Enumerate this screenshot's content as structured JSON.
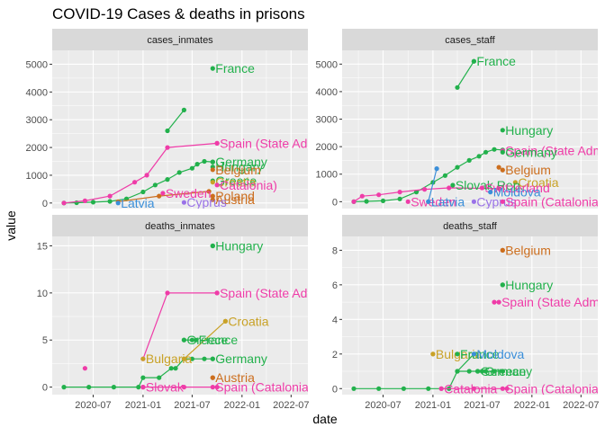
{
  "chart_data": {
    "type": "scatter",
    "title": "COVID-19 Cases & deaths in prisons",
    "xlabel": "date",
    "ylabel": "value",
    "grid": true,
    "facet_layout": "2x2",
    "colors": {
      "green": "#22b14c",
      "pink": "#ef3ca8",
      "orange": "#cc6e1e",
      "gold": "#c9a227",
      "blue": "#3b8fd9",
      "purple": "#9a72e8",
      "teal": "#27a9a0",
      "olive": "#8f9a1f",
      "lime": "#56b82a"
    },
    "x_ticks": [
      "2020-07",
      "2021-01",
      "2021-07",
      "2022-01",
      "2022-07"
    ],
    "panels": [
      {
        "strip": "cases_inmates",
        "ylim": [
          -200,
          5500
        ],
        "y_ticks": [
          0,
          1000,
          2000,
          3000,
          4000,
          5000
        ],
        "series": [
          {
            "color": "green",
            "points": [
              [
                "2020-03-15",
                0
              ],
              [
                "2020-05-01",
                10
              ],
              [
                "2020-07-01",
                30
              ],
              [
                "2020-09-01",
                60
              ],
              [
                "2020-11-01",
                150
              ],
              [
                "2021-01-01",
                400
              ],
              [
                "2021-02-15",
                650
              ],
              [
                "2021-04-01",
                850
              ],
              [
                "2021-05-15",
                1100
              ],
              [
                "2021-07-01",
                1250
              ],
              [
                "2021-07-20",
                1400
              ],
              [
                "2021-08-15",
                1500
              ],
              [
                "2021-09-15",
                1480
              ]
            ]
          },
          {
            "color": "green",
            "points": [
              [
                "2021-04-01",
                2600
              ],
              [
                "2021-06-01",
                3350
              ]
            ]
          },
          {
            "color": "pink",
            "points": [
              [
                "2020-03-15",
                0
              ],
              [
                "2020-06-01",
                80
              ],
              [
                "2020-09-01",
                250
              ],
              [
                "2020-12-01",
                750
              ],
              [
                "2021-01-15",
                1000
              ],
              [
                "2021-04-01",
                2000
              ],
              [
                "2021-10-01",
                2150
              ]
            ]
          },
          {
            "color": "orange",
            "points": [
              [
                "2020-10-01",
                50
              ],
              [
                "2021-03-01",
                250
              ],
              [
                "2021-09-01",
                420
              ]
            ]
          }
        ],
        "labels": [
          {
            "text": "France",
            "x": "2021-09-15",
            "y": 4850,
            "color": "green"
          },
          {
            "text": "Spain (State Adm",
            "x": "2021-10-01",
            "y": 2150,
            "color": "pink"
          },
          {
            "text": "Germany",
            "x": "2021-09-15",
            "y": 1480,
            "color": "green"
          },
          {
            "text": "Hungary",
            "x": "2021-09-15",
            "y": 1300,
            "color": "green"
          },
          {
            "text": "Belgium",
            "x": "2021-09-15",
            "y": 1200,
            "color": "orange"
          },
          {
            "text": "Greece",
            "x": "2021-09-15",
            "y": 800,
            "color": "green"
          },
          {
            "text": "Croatia",
            "x": "2021-09-15",
            "y": 750,
            "color": "gold"
          },
          {
            "text": "Catalonia)",
            "x": "2021-10-01",
            "y": 650,
            "color": "pink"
          },
          {
            "text": "Poland",
            "x": "2021-09-15",
            "y": 250,
            "color": "orange"
          },
          {
            "text": "Sweden",
            "x": "2021-03-15",
            "y": 350,
            "color": "pink"
          },
          {
            "text": "Austria",
            "x": "2021-09-15",
            "y": 120,
            "color": "orange"
          },
          {
            "text": "Cyprus",
            "x": "2021-06-01",
            "y": 20,
            "color": "purple"
          },
          {
            "text": "Latvia",
            "x": "2020-10-01",
            "y": 0,
            "color": "blue"
          }
        ]
      },
      {
        "strip": "cases_staff",
        "ylim": [
          -250,
          5500
        ],
        "y_ticks": [
          0,
          1000,
          2000,
          3000,
          4000,
          5000
        ],
        "series": [
          {
            "color": "green",
            "points": [
              [
                "2020-03-15",
                0
              ],
              [
                "2020-05-01",
                10
              ],
              [
                "2020-07-01",
                30
              ],
              [
                "2020-09-01",
                100
              ],
              [
                "2020-11-01",
                350
              ],
              [
                "2021-01-01",
                700
              ],
              [
                "2021-02-15",
                950
              ],
              [
                "2021-04-01",
                1250
              ],
              [
                "2021-05-15",
                1500
              ],
              [
                "2021-06-20",
                1650
              ],
              [
                "2021-07-15",
                1800
              ],
              [
                "2021-08-15",
                1900
              ],
              [
                "2021-09-15",
                1880
              ]
            ]
          },
          {
            "color": "green",
            "points": [
              [
                "2021-04-01",
                4150
              ],
              [
                "2021-06-01",
                5100
              ]
            ]
          },
          {
            "color": "pink",
            "points": [
              [
                "2020-03-15",
                0
              ],
              [
                "2020-04-15",
                200
              ],
              [
                "2020-06-15",
                250
              ],
              [
                "2020-09-01",
                350
              ],
              [
                "2020-12-01",
                450
              ],
              [
                "2021-03-01",
                500
              ],
              [
                "2021-09-01",
                480
              ]
            ]
          },
          {
            "color": "blue",
            "points": [
              [
                "2020-12-15",
                0
              ],
              [
                "2021-01-15",
                1200
              ]
            ]
          },
          {
            "color": "orange",
            "points": [
              [
                "2021-09-01",
                1250
              ]
            ]
          }
        ],
        "labels": [
          {
            "text": "France",
            "x": "2021-06-01",
            "y": 5100,
            "color": "green"
          },
          {
            "text": "Hungary",
            "x": "2021-09-15",
            "y": 2600,
            "color": "green"
          },
          {
            "text": "Spain (State Adm",
            "x": "2021-09-15",
            "y": 1850,
            "color": "pink"
          },
          {
            "text": "Germany",
            "x": "2021-09-15",
            "y": 1800,
            "color": "green"
          },
          {
            "text": "Belgium",
            "x": "2021-09-15",
            "y": 1150,
            "color": "orange"
          },
          {
            "text": "Croatia",
            "x": "2021-11-01",
            "y": 700,
            "color": "gold"
          },
          {
            "text": "Slovak Rep.",
            "x": "2021-03-15",
            "y": 600,
            "color": "green"
          },
          {
            "text": "Switzerland",
            "x": "2021-07-01",
            "y": 500,
            "color": "pink"
          },
          {
            "text": "Moldova",
            "x": "2021-08-01",
            "y": 350,
            "color": "blue"
          },
          {
            "text": "Sweden",
            "x": "2020-10-01",
            "y": 0,
            "color": "pink"
          },
          {
            "text": "Latvia",
            "x": "2020-12-15",
            "y": 0,
            "color": "blue"
          },
          {
            "text": "Cyprus",
            "x": "2021-06-01",
            "y": 0,
            "color": "purple"
          },
          {
            "text": "Spain (Catalonia)",
            "x": "2021-09-15",
            "y": 0,
            "color": "pink"
          }
        ]
      },
      {
        "strip": "deaths_inmates",
        "ylim": [
          -0.8,
          16
        ],
        "y_ticks": [
          0,
          5,
          10,
          15
        ],
        "series": [
          {
            "color": "green",
            "points": [
              [
                "2020-03-15",
                0
              ],
              [
                "2020-06-15",
                0
              ],
              [
                "2020-09-15",
                0
              ],
              [
                "2020-12-15",
                0
              ],
              [
                "2021-01-01",
                1
              ],
              [
                "2021-03-01",
                1
              ],
              [
                "2021-04-15",
                2
              ],
              [
                "2021-05-01",
                2
              ],
              [
                "2021-06-01",
                3
              ],
              [
                "2021-07-01",
                3
              ],
              [
                "2021-08-15",
                3
              ],
              [
                "2021-09-15",
                3
              ]
            ]
          },
          {
            "color": "green",
            "points": [
              [
                "2021-06-01",
                5
              ],
              [
                "2021-07-01",
                5
              ]
            ]
          },
          {
            "color": "pink",
            "points": [
              [
                "2021-01-01",
                3
              ],
              [
                "2021-04-01",
                10
              ],
              [
                "2021-10-01",
                10
              ]
            ]
          },
          {
            "color": "pink",
            "points": [
              [
                "2020-06-01",
                2
              ]
            ]
          },
          {
            "color": "gold",
            "points": [
              [
                "2021-06-01",
                3
              ],
              [
                "2021-11-01",
                7
              ]
            ]
          },
          {
            "color": "orange",
            "points": [
              [
                "2021-09-15",
                1
              ]
            ]
          },
          {
            "color": "green",
            "points": [
              [
                "2021-09-15",
                15
              ]
            ]
          },
          {
            "color": "pink",
            "points": [
              [
                "2021-01-01",
                0
              ],
              [
                "2021-06-01",
                0
              ],
              [
                "2021-10-01",
                0
              ]
            ]
          }
        ],
        "labels": [
          {
            "text": "Hungary",
            "x": "2021-09-15",
            "y": 15,
            "color": "green"
          },
          {
            "text": "Spain (State Adm",
            "x": "2021-10-01",
            "y": 10,
            "color": "pink"
          },
          {
            "text": "Croatia",
            "x": "2021-11-01",
            "y": 7,
            "color": "gold"
          },
          {
            "text": "Greece",
            "x": "2021-06-01",
            "y": 5,
            "color": "green"
          },
          {
            "text": "France",
            "x": "2021-07-15",
            "y": 5,
            "color": "green"
          },
          {
            "text": "Bulgaria",
            "x": "2021-01-01",
            "y": 3,
            "color": "gold"
          },
          {
            "text": "Germany",
            "x": "2021-09-15",
            "y": 3,
            "color": "green"
          },
          {
            "text": "Austria",
            "x": "2021-09-15",
            "y": 1,
            "color": "orange"
          },
          {
            "text": "Slovak",
            "x": "2021-01-01",
            "y": 0,
            "color": "pink"
          },
          {
            "text": "Spain (Catalonia)",
            "x": "2021-09-15",
            "y": 0,
            "color": "pink"
          }
        ]
      },
      {
        "strip": "deaths_staff",
        "ylim": [
          -0.35,
          8.8
        ],
        "y_ticks": [
          0,
          2,
          4,
          6,
          8
        ],
        "series": [
          {
            "color": "green",
            "points": [
              [
                "2020-03-15",
                0
              ],
              [
                "2020-06-15",
                0
              ],
              [
                "2020-09-15",
                0
              ],
              [
                "2020-12-15",
                0
              ],
              [
                "2021-03-01",
                0
              ],
              [
                "2021-04-01",
                1
              ],
              [
                "2021-05-15",
                1
              ],
              [
                "2021-06-15",
                1
              ],
              [
                "2021-07-15",
                1
              ],
              [
                "2021-08-15",
                1
              ],
              [
                "2021-09-15",
                1
              ]
            ]
          },
          {
            "color": "green",
            "points": [
              [
                "2021-04-01",
                1
              ],
              [
                "2021-06-01",
                2
              ]
            ]
          },
          {
            "color": "green",
            "points": [
              [
                "2021-09-15",
                6
              ]
            ]
          },
          {
            "color": "orange",
            "points": [
              [
                "2021-09-15",
                8
              ]
            ]
          },
          {
            "color": "pink",
            "points": [
              [
                "2021-08-15",
                5
              ]
            ]
          },
          {
            "color": "gold",
            "points": [
              [
                "2021-01-01",
                2
              ]
            ]
          },
          {
            "color": "pink",
            "points": [
              [
                "2021-02-01",
                0
              ],
              [
                "2021-06-01",
                0
              ],
              [
                "2021-10-01",
                0
              ]
            ]
          }
        ],
        "labels": [
          {
            "text": "Belgium",
            "x": "2021-09-15",
            "y": 8,
            "color": "orange"
          },
          {
            "text": "Hungary",
            "x": "2021-09-15",
            "y": 6,
            "color": "green"
          },
          {
            "text": "Spain (State Adm",
            "x": "2021-09-01",
            "y": 5,
            "color": "pink"
          },
          {
            "text": "Bulgaria",
            "x": "2021-01-01",
            "y": 2,
            "color": "gold"
          },
          {
            "text": "France",
            "x": "2021-04-01",
            "y": 2,
            "color": "green"
          },
          {
            "text": "Moldova",
            "x": "2021-06-01",
            "y": 2,
            "color": "blue"
          },
          {
            "text": "Germany",
            "x": "2021-06-15",
            "y": 1,
            "color": "green"
          },
          {
            "text": "Greece",
            "x": "2021-07-01",
            "y": 1,
            "color": "green"
          },
          {
            "text": "Catalonia",
            "x": "2021-02-01",
            "y": 0,
            "color": "pink"
          },
          {
            "text": "Spain (Catalonia)",
            "x": "2021-09-15",
            "y": 0,
            "color": "pink"
          }
        ]
      }
    ]
  }
}
